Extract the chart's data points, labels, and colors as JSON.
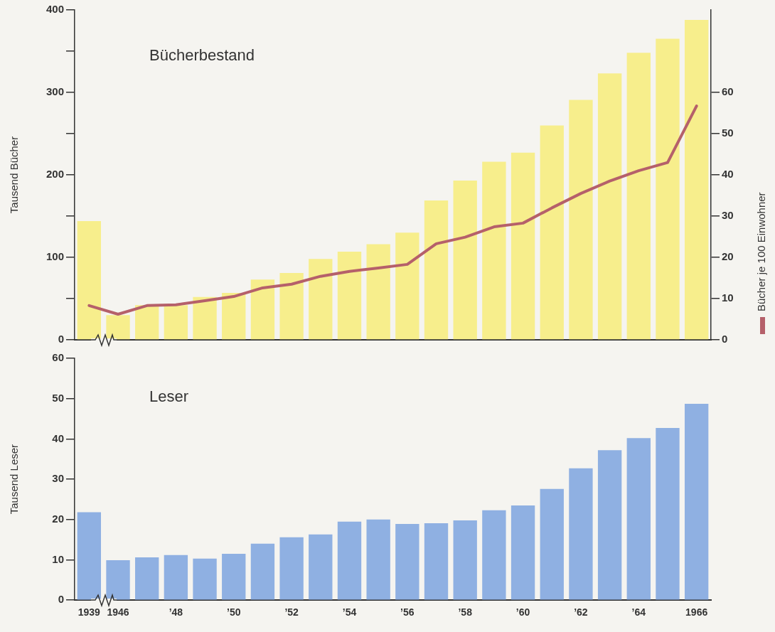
{
  "chart_data": [
    {
      "type": "bar",
      "title": "Bücherbestand",
      "ylabel": "Tausend Bücher",
      "y2label": "Bücher je 100 Einwohner",
      "categories": [
        null,
        null,
        null,
        null,
        null,
        null,
        null,
        null,
        null,
        null,
        null,
        null,
        null,
        null,
        null,
        null,
        null,
        null,
        null,
        null,
        null,
        null
      ],
      "series": [
        {
          "color": "#f7ee8c",
          "values": [
            144,
            30,
            42,
            42,
            52,
            57,
            73,
            81,
            98,
            107,
            116,
            130,
            169,
            193,
            216,
            227,
            260,
            291,
            323,
            348,
            365,
            388
          ]
        },
        {
          "type": "line",
          "axis": "y2",
          "color": "#b5606a",
          "values": [
            8.3,
            6.2,
            8.3,
            8.5,
            9.5,
            10.5,
            12.6,
            13.5,
            15.4,
            16.6,
            17.4,
            18.3,
            23.3,
            24.9,
            27.4,
            28.3,
            32,
            35.5,
            38.5,
            41,
            43,
            56.7
          ]
        }
      ],
      "ylim": [
        0,
        400
      ],
      "yticks": [
        0,
        {
          "value": 50,
          "label": null
        },
        100,
        {
          "value": 150,
          "label": null
        },
        200,
        {
          "value": 250,
          "label": null
        },
        300,
        {
          "value": 350,
          "label": null
        },
        400
      ],
      "y2lim": [
        0,
        80
      ],
      "y2ticks": [
        0,
        10,
        20,
        30,
        40,
        50,
        60
      ],
      "tick_labels": "y",
      "grid": false,
      "marker": "none",
      "line_style": "solid"
    },
    {
      "type": "bar",
      "title": "Leser",
      "ylabel": "Tausend Leser",
      "categories": [
        "1939",
        "1946",
        null,
        "’48",
        null,
        "’50",
        null,
        "’52",
        null,
        "’54",
        null,
        "’56",
        null,
        "’58",
        null,
        "’60",
        null,
        "’62",
        null,
        "’64",
        null,
        "1966"
      ],
      "series": [
        {
          "color": "#8fb0e2",
          "values": [
            21.8,
            9.9,
            10.6,
            11.2,
            10.3,
            11.5,
            14,
            15.6,
            16.3,
            19.5,
            20,
            18.9,
            19.1,
            19.8,
            22.3,
            23.5,
            27.6,
            32.7,
            37.2,
            40.2,
            42.7,
            48.7
          ]
        }
      ],
      "ylim": [
        0,
        60
      ],
      "yticks": [
        0,
        10,
        20,
        30,
        40,
        50,
        60
      ],
      "grid": false
    }
  ]
}
